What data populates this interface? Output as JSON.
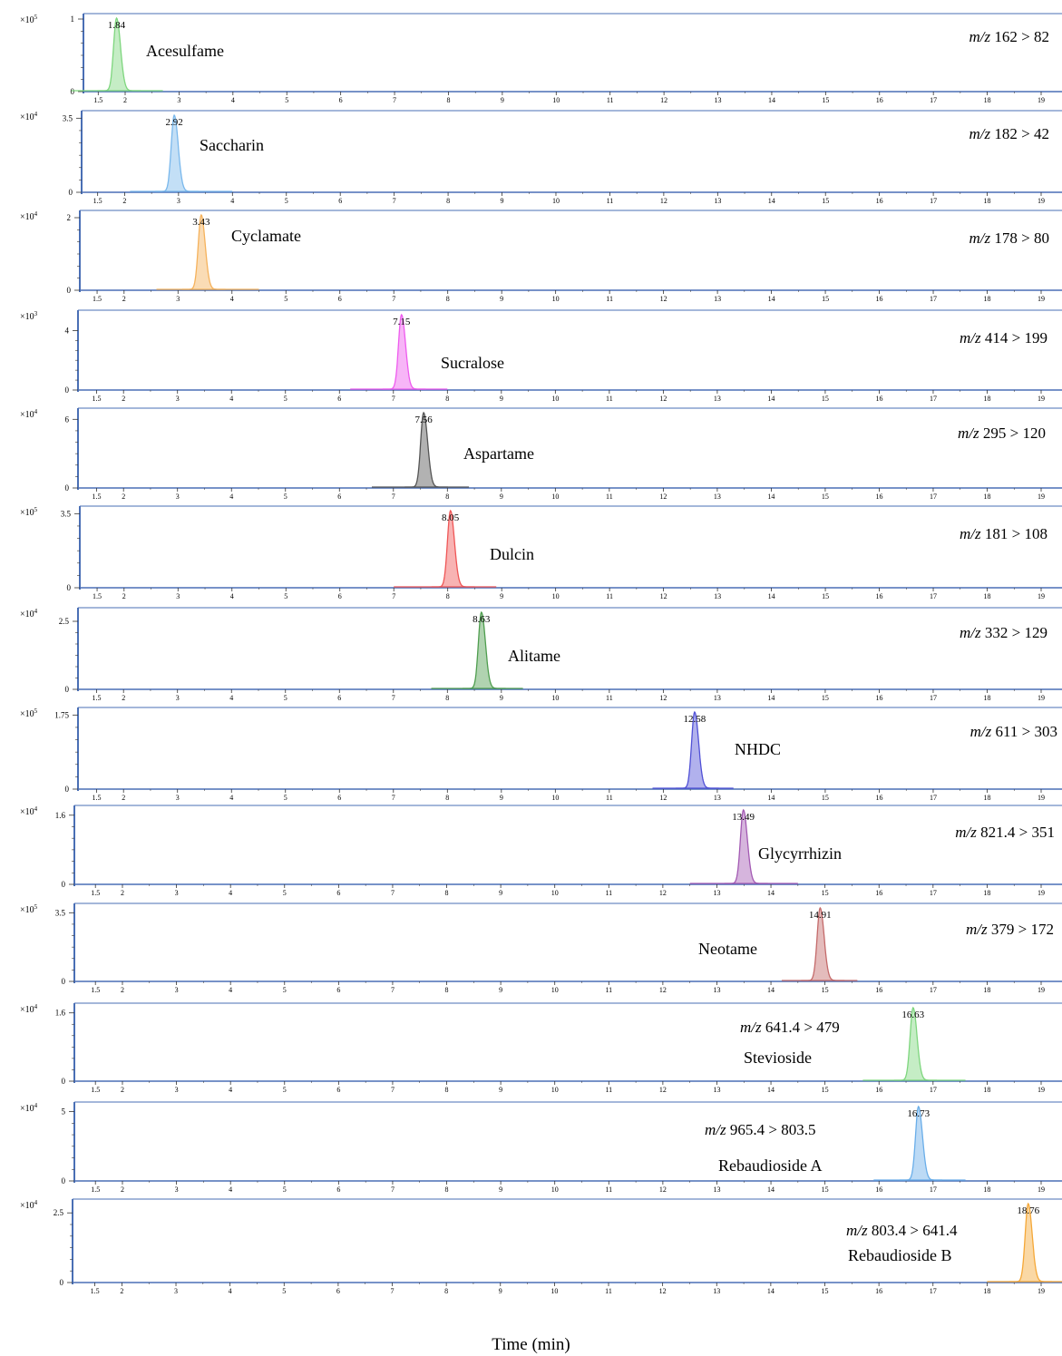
{
  "colors": {
    "axis": "#4a6fb5",
    "tick": "#333333"
  },
  "chart_data": [
    {
      "type": "line",
      "compound": "Acesulfame",
      "transition": "162 > 82",
      "rt": 1.84,
      "scale_exp": "5",
      "yticks": [
        0,
        1
      ],
      "ymax": 1.0,
      "peak_height": 1.0,
      "baseline": [
        1.0,
        2.7
      ],
      "xlim": [
        1.0,
        19.4
      ],
      "xticks": [
        "1.5",
        "2",
        "3",
        "4",
        "5",
        "6",
        "7",
        "8",
        "9",
        "10",
        "11",
        "12",
        "13",
        "14",
        "15",
        "16",
        "17",
        "18",
        "19"
      ],
      "color": "#7ed67e"
    },
    {
      "type": "line",
      "compound": "Saccharin",
      "transition": "182 > 42",
      "rt": 2.92,
      "scale_exp": "4",
      "yticks": [
        0,
        3.5
      ],
      "ymax": 3.5,
      "peak_height": 3.6,
      "baseline": [
        2.1,
        4.0
      ],
      "xlim": [
        1.0,
        19.4
      ],
      "xticks": [
        "1.5",
        "2",
        "3",
        "4",
        "5",
        "6",
        "7",
        "8",
        "9",
        "10",
        "11",
        "12",
        "13",
        "14",
        "15",
        "16",
        "17",
        "18",
        "19"
      ],
      "color": "#7ab8ec"
    },
    {
      "type": "line",
      "compound": "Cyclamate",
      "transition": "178 > 80",
      "rt": 3.43,
      "scale_exp": "4",
      "yticks": [
        0,
        2
      ],
      "ymax": 2.0,
      "peak_height": 2.05,
      "baseline": [
        2.6,
        4.5
      ],
      "xlim": [
        1.0,
        19.4
      ],
      "xticks": [
        "1.5",
        "2",
        "3",
        "4",
        "5",
        "6",
        "7",
        "8",
        "9",
        "10",
        "11",
        "12",
        "13",
        "14",
        "15",
        "16",
        "17",
        "18",
        "19"
      ],
      "color": "#f5b25c"
    },
    {
      "type": "line",
      "compound": "Sucralose",
      "transition": "414 > 199",
      "rt": 7.15,
      "scale_exp": "3",
      "yticks": [
        0,
        4
      ],
      "ymax": 4.0,
      "peak_height": 5.0,
      "baseline": [
        6.2,
        8.0
      ],
      "xlim": [
        1.0,
        19.4
      ],
      "xticks": [
        "1.5",
        "2",
        "3",
        "4",
        "5",
        "6",
        "7",
        "8",
        "9",
        "10",
        "11",
        "12",
        "13",
        "14",
        "15",
        "16",
        "17",
        "18",
        "19"
      ],
      "color": "#ee5bee"
    },
    {
      "type": "line",
      "compound": "Aspartame",
      "transition": "295 > 120",
      "rt": 7.56,
      "scale_exp": "4",
      "yticks": [
        0,
        6
      ],
      "ymax": 6.0,
      "peak_height": 6.5,
      "baseline": [
        6.6,
        8.4
      ],
      "xlim": [
        1.0,
        19.4
      ],
      "xticks": [
        "1.5",
        "2",
        "3",
        "4",
        "5",
        "6",
        "7",
        "8",
        "9",
        "10",
        "11",
        "12",
        "13",
        "14",
        "15",
        "16",
        "17",
        "18",
        "19"
      ],
      "color": "#555555"
    },
    {
      "type": "line",
      "compound": "Dulcin",
      "transition": "181 > 108",
      "rt": 8.05,
      "scale_exp": "5",
      "yticks": [
        0,
        3.5
      ],
      "ymax": 3.5,
      "peak_height": 3.6,
      "baseline": [
        7.0,
        8.9
      ],
      "xlim": [
        1.0,
        19.4
      ],
      "xticks": [
        "1.5",
        "2",
        "3",
        "4",
        "5",
        "6",
        "7",
        "8",
        "9",
        "10",
        "11",
        "12",
        "13",
        "14",
        "15",
        "16",
        "17",
        "18",
        "19"
      ],
      "color": "#ef5656"
    },
    {
      "type": "line",
      "compound": "Alitame",
      "transition": "332 > 129",
      "rt": 8.63,
      "scale_exp": "4",
      "yticks": [
        0,
        2.5
      ],
      "ymax": 2.5,
      "peak_height": 2.8,
      "baseline": [
        7.7,
        9.4
      ],
      "xlim": [
        1.0,
        19.4
      ],
      "xticks": [
        "1.5",
        "2",
        "3",
        "4",
        "5",
        "6",
        "7",
        "8",
        "9",
        "10",
        "11",
        "12",
        "13",
        "14",
        "15",
        "16",
        "17",
        "18",
        "19"
      ],
      "color": "#4f9e4f"
    },
    {
      "type": "line",
      "compound": "NHDC",
      "transition": "611 > 303",
      "rt": 12.58,
      "scale_exp": "5",
      "yticks": [
        0,
        1.75
      ],
      "ymax": 1.75,
      "peak_height": 1.8,
      "baseline": [
        11.8,
        13.3
      ],
      "xlim": [
        1.0,
        19.4
      ],
      "xticks": [
        "1.5",
        "2",
        "3",
        "4",
        "5",
        "6",
        "7",
        "8",
        "9",
        "10",
        "11",
        "12",
        "13",
        "14",
        "15",
        "16",
        "17",
        "18",
        "19"
      ],
      "color": "#5151d6"
    },
    {
      "type": "line",
      "compound": "Glycyrrhizin",
      "transition": "821.4 > 351",
      "rt": 13.49,
      "scale_exp": "4",
      "yticks": [
        0,
        1.6
      ],
      "ymax": 1.6,
      "peak_height": 1.7,
      "baseline": [
        12.5,
        14.5
      ],
      "xlim": [
        1.0,
        19.4
      ],
      "xticks": [
        "1.5",
        "2",
        "3",
        "4",
        "5",
        "6",
        "7",
        "8",
        "9",
        "10",
        "11",
        "12",
        "13",
        "14",
        "15",
        "16",
        "17",
        "18",
        "19"
      ],
      "color": "#a35ab3"
    },
    {
      "type": "line",
      "compound": "Neotame",
      "transition": "379 > 172",
      "rt": 14.91,
      "scale_exp": "5",
      "yticks": [
        0,
        3.5
      ],
      "ymax": 3.5,
      "peak_height": 3.7,
      "baseline": [
        14.2,
        15.6
      ],
      "xlim": [
        1.0,
        19.4
      ],
      "xticks": [
        "1.5",
        "2",
        "3",
        "4",
        "5",
        "6",
        "7",
        "8",
        "9",
        "10",
        "11",
        "12",
        "13",
        "14",
        "15",
        "16",
        "17",
        "18",
        "19"
      ],
      "color": "#c46a6a"
    },
    {
      "type": "line",
      "compound": "Stevioside",
      "transition": "641.4 > 479",
      "rt": 16.63,
      "scale_exp": "4",
      "yticks": [
        0,
        1.6
      ],
      "ymax": 1.6,
      "peak_height": 1.7,
      "baseline": [
        15.7,
        17.6
      ],
      "xlim": [
        1.0,
        19.4
      ],
      "xticks": [
        "1.5",
        "2",
        "3",
        "4",
        "5",
        "6",
        "7",
        "8",
        "9",
        "10",
        "11",
        "12",
        "13",
        "14",
        "15",
        "16",
        "17",
        "18",
        "19"
      ],
      "color": "#7ed67e"
    },
    {
      "type": "line",
      "compound": "Rebaudioside A",
      "transition": "965.4 > 803.5",
      "rt": 16.73,
      "scale_exp": "4",
      "yticks": [
        0,
        5
      ],
      "ymax": 5.0,
      "peak_height": 5.3,
      "baseline": [
        15.9,
        17.6
      ],
      "xlim": [
        1.0,
        19.4
      ],
      "xticks": [
        "1.5",
        "2",
        "3",
        "4",
        "5",
        "6",
        "7",
        "8",
        "9",
        "10",
        "11",
        "12",
        "13",
        "14",
        "15",
        "16",
        "17",
        "18",
        "19"
      ],
      "color": "#6aaee9"
    },
    {
      "type": "line",
      "compound": "Rebaudioside B",
      "transition": "803.4 > 641.4",
      "rt": 18.76,
      "scale_exp": "4",
      "yticks": [
        0,
        2.5
      ],
      "ymax": 2.5,
      "peak_height": 2.8,
      "baseline": [
        18.0,
        19.4
      ],
      "xlim": [
        1.0,
        19.4
      ],
      "xticks": [
        "1.5",
        "2",
        "3",
        "4",
        "5",
        "6",
        "7",
        "8",
        "9",
        "10",
        "11",
        "12",
        "13",
        "14",
        "15",
        "16",
        "17",
        "18",
        "19"
      ],
      "color": "#f5a838"
    }
  ],
  "xlabel": "Time (min)",
  "mz_prefix": "m/z",
  "scale_prefix": "×10"
}
